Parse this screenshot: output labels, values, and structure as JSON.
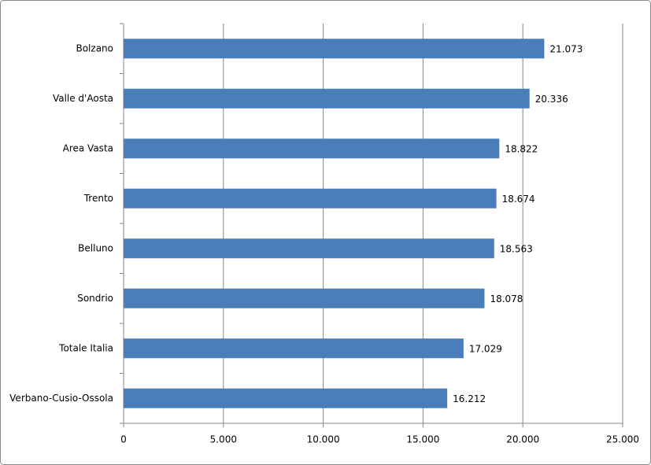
{
  "chart_data": {
    "type": "barh",
    "categories": [
      "Bolzano",
      "Valle d'Aosta",
      "Area Vasta",
      "Trento",
      "Belluno",
      "Sondrio",
      "Totale Italia",
      "Verbano-Cusio-Ossola"
    ],
    "values": [
      21073,
      20336,
      18822,
      18674,
      18563,
      18078,
      17029,
      16212
    ],
    "value_labels": [
      "21.073",
      "20.336",
      "18.822",
      "18.674",
      "18.563",
      "18.078",
      "17.029",
      "16.212"
    ],
    "color": "#4a7ebb",
    "xlim": [
      0,
      25000
    ],
    "xticks": [
      0,
      {
        "value": 5000,
        "label": "5.000"
      },
      {
        "value": 10000,
        "label": "10.000"
      },
      {
        "value": 15000,
        "label": "15.000"
      },
      {
        "value": 20000,
        "label": "20.000"
      },
      {
        "value": 25000,
        "label": "25.000"
      }
    ],
    "grid": true
  }
}
